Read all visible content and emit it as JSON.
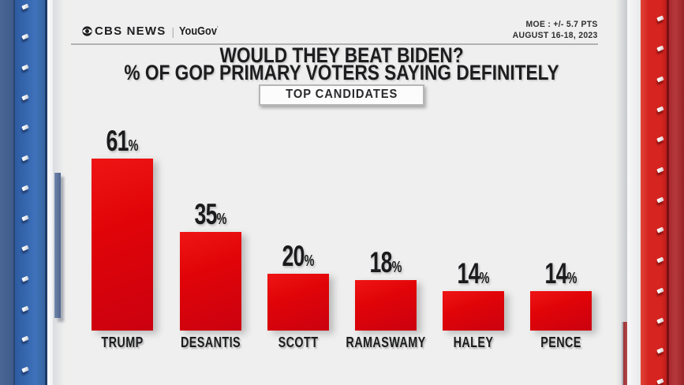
{
  "header": {
    "brand": {
      "network": "CBS NEWS",
      "separator": "|",
      "partner": "YouGov",
      "partner_mark": "’"
    },
    "moe": {
      "line1": "MOE : +/- 5.7 PTS",
      "line2": "AUGUST 16-18, 2023"
    }
  },
  "title": {
    "line1": "WOULD THEY BEAT BIDEN?",
    "line2": "% OF GOP PRIMARY VOTERS SAYING DEFINITELY"
  },
  "badge": {
    "label": "TOP CANDIDATES"
  },
  "chart_data": {
    "type": "bar",
    "categories": [
      "TRUMP",
      "DESANTIS",
      "SCOTT",
      "RAMASWAMY",
      "HALEY",
      "PENCE"
    ],
    "values": [
      61,
      35,
      20,
      18,
      14,
      14
    ],
    "value_suffix": "%",
    "title": "WOULD THEY BEAT BIDEN?",
    "subtitle": "% OF GOP PRIMARY VOTERS SAYING DEFINITELY",
    "group_label": "TOP CANDIDATES",
    "xlabel": "",
    "ylabel": "",
    "ylim": [
      0,
      65
    ],
    "grid": false,
    "legend": false,
    "bar_color": "#e00408",
    "label_color": "#1b1b1d"
  },
  "colors": {
    "background": "#eeefee",
    "bar_red": "#e00408",
    "frame_blue": "#3e72bb",
    "frame_red": "#d62520",
    "text_dark": "#1d1d1f",
    "divider_gray": "#b2b2b2"
  }
}
